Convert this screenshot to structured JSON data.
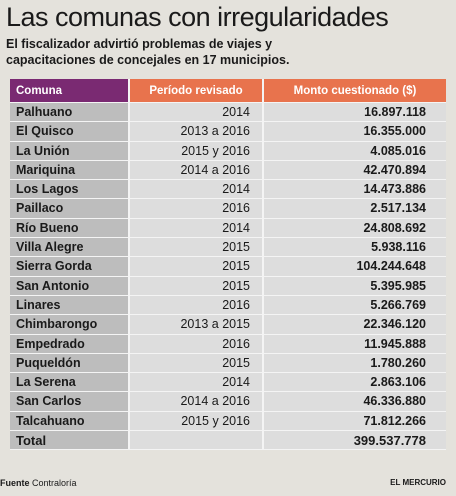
{
  "header": {
    "title": "Las comunas con irregularidades",
    "subtitle": "El fiscalizador advirtió problemas de viajes y capacitaciones de concejales en 17 municipios."
  },
  "table": {
    "columns": [
      "Comuna",
      "Período revisado",
      "Monto cuestionado ($)"
    ],
    "rows": [
      [
        "Palhuano",
        "2014",
        "16.897.118"
      ],
      [
        "El Quisco",
        "2013 a 2016",
        "16.355.000"
      ],
      [
        "La Unión",
        "2015 y 2016",
        "4.085.016"
      ],
      [
        "Mariquina",
        "2014 a 2016",
        "42.470.894"
      ],
      [
        "Los Lagos",
        "2014",
        "14.473.886"
      ],
      [
        "Paillaco",
        "2016",
        "2.517.134"
      ],
      [
        "Río Bueno",
        "2014",
        "24.808.692"
      ],
      [
        "Villa Alegre",
        "2015",
        "5.938.116"
      ],
      [
        "Sierra Gorda",
        "2015",
        "104.244.648"
      ],
      [
        "San Antonio",
        "2015",
        "5.395.985"
      ],
      [
        "Linares",
        "2016",
        "5.266.769"
      ],
      [
        "Chimbarongo",
        "2013 a 2015",
        "22.346.120"
      ],
      [
        "Empedrado",
        "2016",
        "11.945.888"
      ],
      [
        "Puqueldón",
        "2015",
        "1.780.260"
      ],
      [
        "La Serena",
        "2014",
        "2.863.106"
      ],
      [
        "San Carlos",
        "2014 a 2016",
        "46.336.880"
      ],
      [
        "Talcahuano",
        "2015 y 2016",
        "71.812.266"
      ]
    ],
    "total": {
      "label": "Total",
      "value": "399.537.778"
    }
  },
  "footer": {
    "source_label": "Fuente",
    "source": "Contraloría",
    "brand": "EL MERCURIO"
  }
}
